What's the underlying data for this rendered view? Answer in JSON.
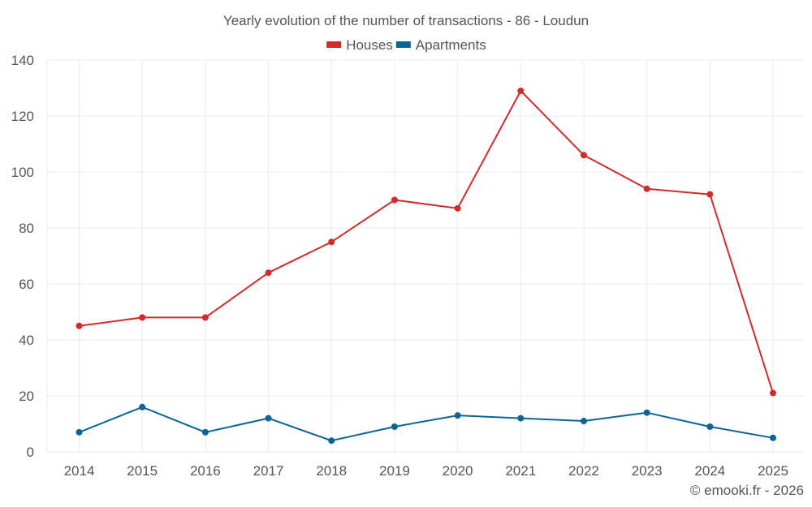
{
  "chart_data": {
    "type": "line",
    "title": "Yearly evolution of the number of transactions - 86 - Loudun",
    "xlabel": "",
    "ylabel": "",
    "categories": [
      "2014",
      "2015",
      "2016",
      "2017",
      "2018",
      "2019",
      "2020",
      "2021",
      "2022",
      "2023",
      "2024",
      "2025"
    ],
    "ylim": [
      0,
      140
    ],
    "yticks": [
      0,
      20,
      40,
      60,
      80,
      100,
      120,
      140
    ],
    "grid": true,
    "legend_position": "top-center",
    "series": [
      {
        "name": "Houses",
        "color": "#d42a2a",
        "values": [
          45,
          48,
          48,
          64,
          75,
          90,
          87,
          129,
          106,
          94,
          92,
          21
        ]
      },
      {
        "name": "Apartments",
        "color": "#0a6496",
        "values": [
          7,
          16,
          7,
          12,
          4,
          9,
          13,
          12,
          11,
          14,
          9,
          5
        ]
      }
    ]
  },
  "footer": {
    "credit": "© emooki.fr - 2026"
  }
}
